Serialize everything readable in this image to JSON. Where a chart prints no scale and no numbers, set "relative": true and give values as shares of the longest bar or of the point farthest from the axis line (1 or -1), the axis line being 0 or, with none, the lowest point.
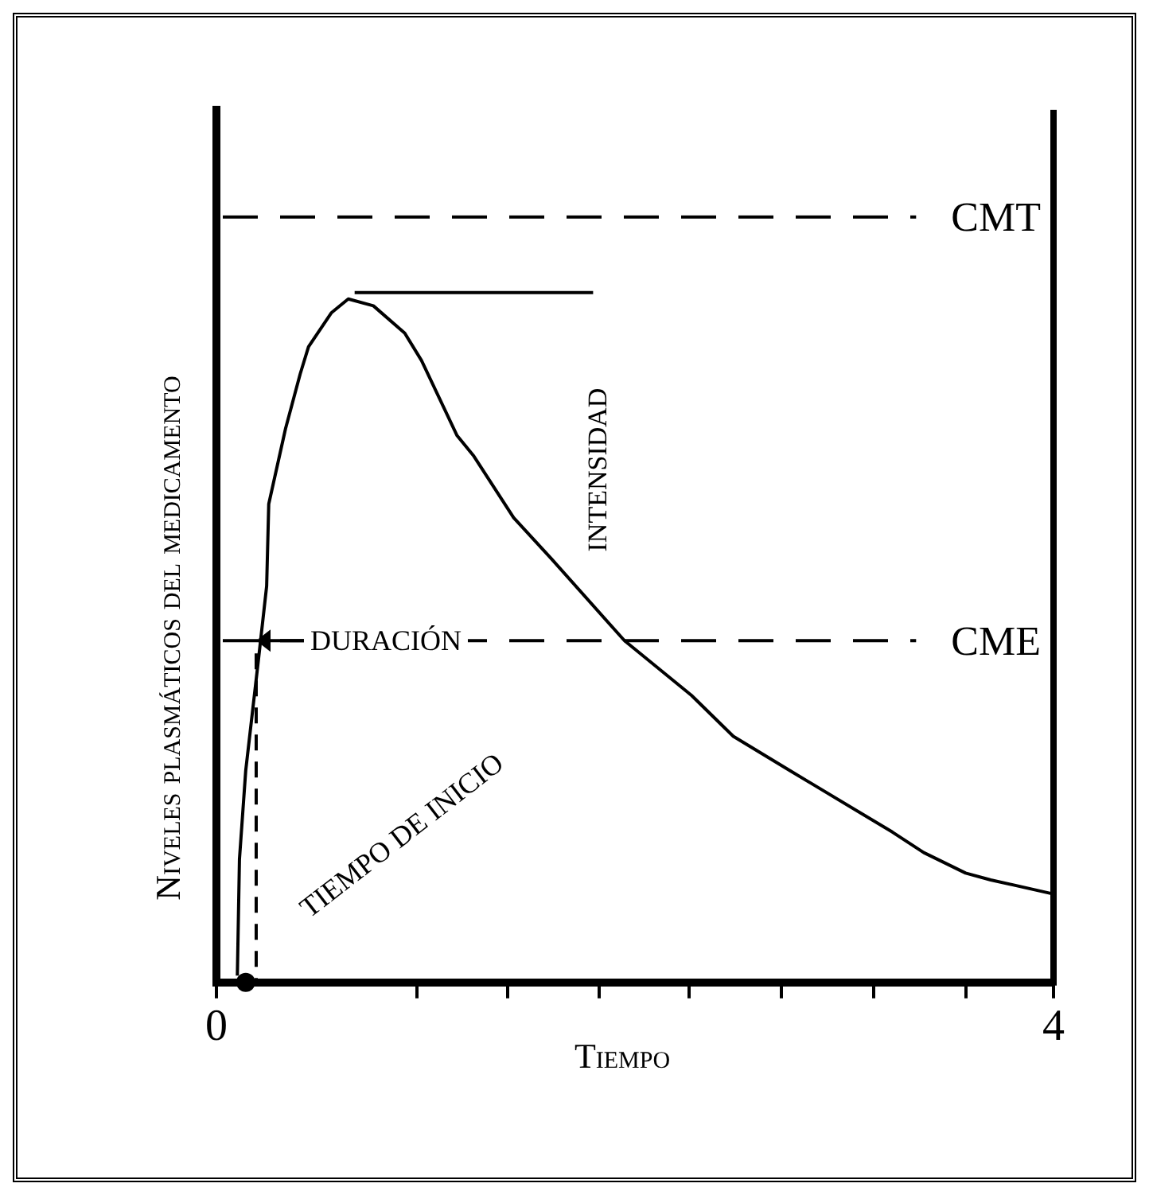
{
  "chart_data": {
    "type": "line",
    "xlabel": "Tiempo",
    "ylabel": "Niveles plasmáticos del medicamento",
    "relative": true,
    "x": [
      0.1,
      0.11,
      0.14,
      0.2,
      0.24,
      0.25,
      0.33,
      0.4,
      0.44,
      0.55,
      0.63,
      0.75,
      0.9,
      0.98,
      1.15,
      1.23,
      1.42,
      1.6,
      1.95,
      2.27,
      2.47,
      2.74,
      3.23,
      3.38,
      3.58,
      3.7,
      3.99
    ],
    "series": [
      {
        "color": "#000000",
        "values": [
          0.01,
          0.18,
          0.31,
          0.47,
          0.58,
          0.7,
          0.81,
          0.89,
          0.93,
          0.98,
          1.0,
          0.99,
          0.95,
          0.91,
          0.8,
          0.77,
          0.68,
          0.62,
          0.5,
          0.42,
          0.36,
          0.31,
          0.22,
          0.19,
          0.16,
          0.15,
          0.13
        ]
      }
    ],
    "xlim": [
      0,
      4
    ],
    "xticks": [
      {
        "value": 0,
        "label": "0"
      },
      {
        "value": 0.96,
        "label": null
      },
      {
        "value": 1.39,
        "label": null
      },
      {
        "value": 1.83,
        "label": null
      },
      {
        "value": 2.26,
        "label": null
      },
      {
        "value": 2.7,
        "label": null
      },
      {
        "value": 3.14,
        "label": null
      },
      {
        "value": 3.58,
        "label": null
      },
      {
        "value": 4,
        "label": "4"
      }
    ],
    "ref_lines": [
      {
        "axis": "y",
        "value": 1.12,
        "label": "CMT",
        "line_style": "dashed"
      },
      {
        "axis": "y",
        "value": 0.5,
        "label": "CME",
        "line_style": "dashed"
      }
    ],
    "annotations": [
      {
        "text": "DURACIÓN",
        "x": 0.19,
        "y": 0.5
      },
      "INTENSIDAD",
      {
        "text": "TIEMPO DE INICIO",
        "x": 0.14,
        "y": 0
      }
    ],
    "grid": false,
    "legend": false
  }
}
